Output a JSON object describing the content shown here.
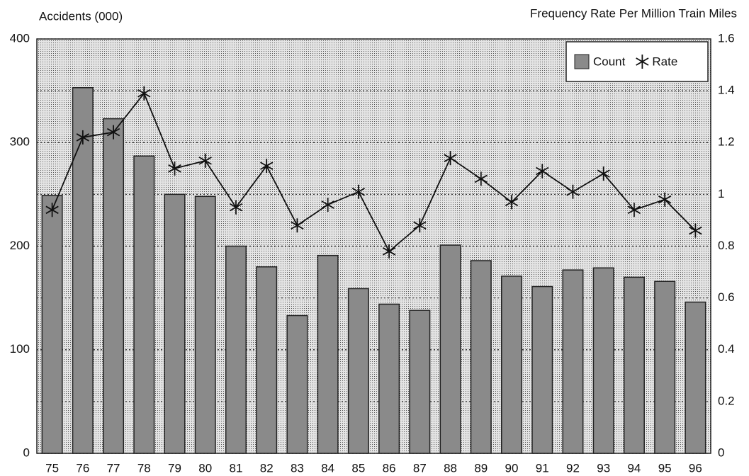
{
  "chart_data": {
    "type": "bar",
    "ylabel": "Accidents (000)",
    "y2label": "Frequency Rate Per Million Train Miles",
    "categories": [
      "75",
      "76",
      "77",
      "78",
      "79",
      "80",
      "81",
      "82",
      "83",
      "84",
      "85",
      "86",
      "87",
      "88",
      "89",
      "90",
      "91",
      "92",
      "93",
      "94",
      "95",
      "96"
    ],
    "series": [
      {
        "name": "Count",
        "color": "#8a8a8a",
        "values": [
          249,
          353,
          323,
          287,
          250,
          248,
          200,
          180,
          133,
          191,
          159,
          144,
          138,
          201,
          186,
          171,
          161,
          177,
          179,
          170,
          166,
          146
        ]
      },
      {
        "name": "Rate",
        "color": "#111111",
        "axis": "y2",
        "values": [
          0.94,
          1.22,
          1.24,
          1.39,
          1.1,
          1.13,
          0.95,
          1.11,
          0.88,
          0.96,
          1.01,
          0.78,
          0.88,
          1.14,
          1.06,
          0.97,
          1.09,
          1.01,
          1.08,
          0.94,
          0.98,
          0.86
        ]
      }
    ],
    "ylim": [
      0,
      400
    ],
    "yticks": [
      0,
      100,
      200,
      300,
      400
    ],
    "y2lim": [
      0,
      1.6
    ],
    "y2ticks": [
      0,
      0.2,
      0.4,
      0.6,
      0.8,
      1,
      1.2,
      1.4,
      1.6
    ],
    "grid": true,
    "legend": "top-right"
  }
}
